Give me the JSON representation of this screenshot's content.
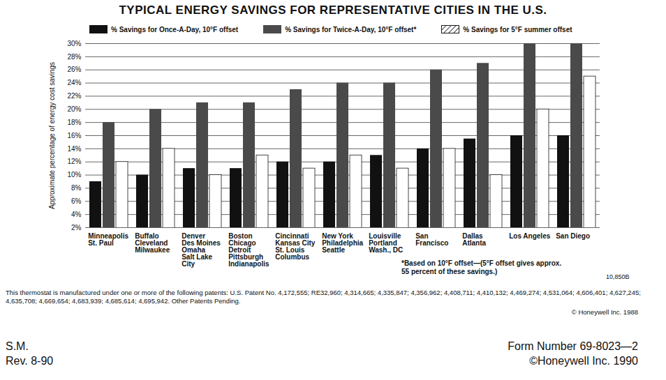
{
  "chart_data": {
    "type": "bar",
    "title": "TYPICAL ENERGY SAVINGS FOR REPRESENTATIVE CITIES IN THE U.S.",
    "y_label": "Approximate percentage of energy cost savings",
    "categories": [
      "Minneapolis\nSt. Paul",
      "Buffalo\nCleveland\nMilwaukee",
      "Denver\nDes Moines\nOmaha\nSalt Lake\nCity",
      "Boston\nChicago\nDetroit\nPittsburgh\nIndianapolis",
      "Cincinnati\nKansas City\nSt. Louis\nColumbus",
      "New York\nPhiladelphia\nSeattle",
      "Louisville\nPortland\nWash., DC",
      "San\nFrancisco",
      "Dallas\nAtlanta",
      "Los Angeles",
      "San Diego"
    ],
    "series": [
      {
        "name": "% Savings for Once-A-Day, 10°F offset",
        "color": "#111111",
        "values": [
          9,
          10,
          11,
          11,
          12,
          12,
          13,
          14,
          15.5,
          16,
          16
        ]
      },
      {
        "name": "% Savings for Twice-A-Day, 10°F offset*",
        "color": "#4a4a4a",
        "values": [
          18,
          20,
          21,
          21,
          23,
          24,
          24,
          26,
          27,
          30,
          30
        ]
      },
      {
        "name": "% Savings for 5°F summer offset",
        "color": "#1a1a1a",
        "line_style": "hatched",
        "values": [
          12,
          14,
          10,
          13,
          11,
          13,
          11,
          14,
          10,
          20,
          25
        ]
      }
    ],
    "ylim": [
      2,
      30
    ],
    "yticks": [
      {
        "value": 2,
        "label": "2%"
      },
      {
        "value": 4,
        "label": "4%"
      },
      {
        "value": 6,
        "label": "6%"
      },
      {
        "value": 8,
        "label": "8%"
      },
      {
        "value": 10,
        "label": "10%"
      },
      {
        "value": 12,
        "label": "12%"
      },
      {
        "value": 14,
        "label": "14%"
      },
      {
        "value": 16,
        "label": "16%"
      },
      {
        "value": 18,
        "label": "18%"
      },
      {
        "value": 20,
        "label": "20%"
      },
      {
        "value": 22,
        "label": "22%"
      },
      {
        "value": 24,
        "label": "24%"
      },
      {
        "value": 26,
        "label": "26%"
      },
      {
        "value": 28,
        "label": "28%"
      },
      {
        "value": 30,
        "label": "30%"
      }
    ],
    "grid": true,
    "legend": "top",
    "footnote": "*Based on 10°F offset—(5°F offset gives approx. 55 percent of these savings.)",
    "chart_code": "10,850B",
    "chart_copyright": "© Honeywell Inc. 1988"
  },
  "page": {
    "patents": "This thermostat is manufactured under one or more of the following patents: U.S. Patent No. 4,172,555; RE32,960; 4,314,665; 4,335,847; 4,356,962; 4,408,711; 4,410,132; 4,469,274; 4,531,064; 4,606,401; 4,627,245; 4,635,708; 4,669,654; 4,683,939; 4,685,614; 4,695,942. Other Patents Pending.",
    "left_lines": [
      "S.M.",
      "Rev. 8-90"
    ],
    "right_lines": [
      "Form Number 69-8023—2",
      "©Honeywell Inc. 1990"
    ]
  }
}
